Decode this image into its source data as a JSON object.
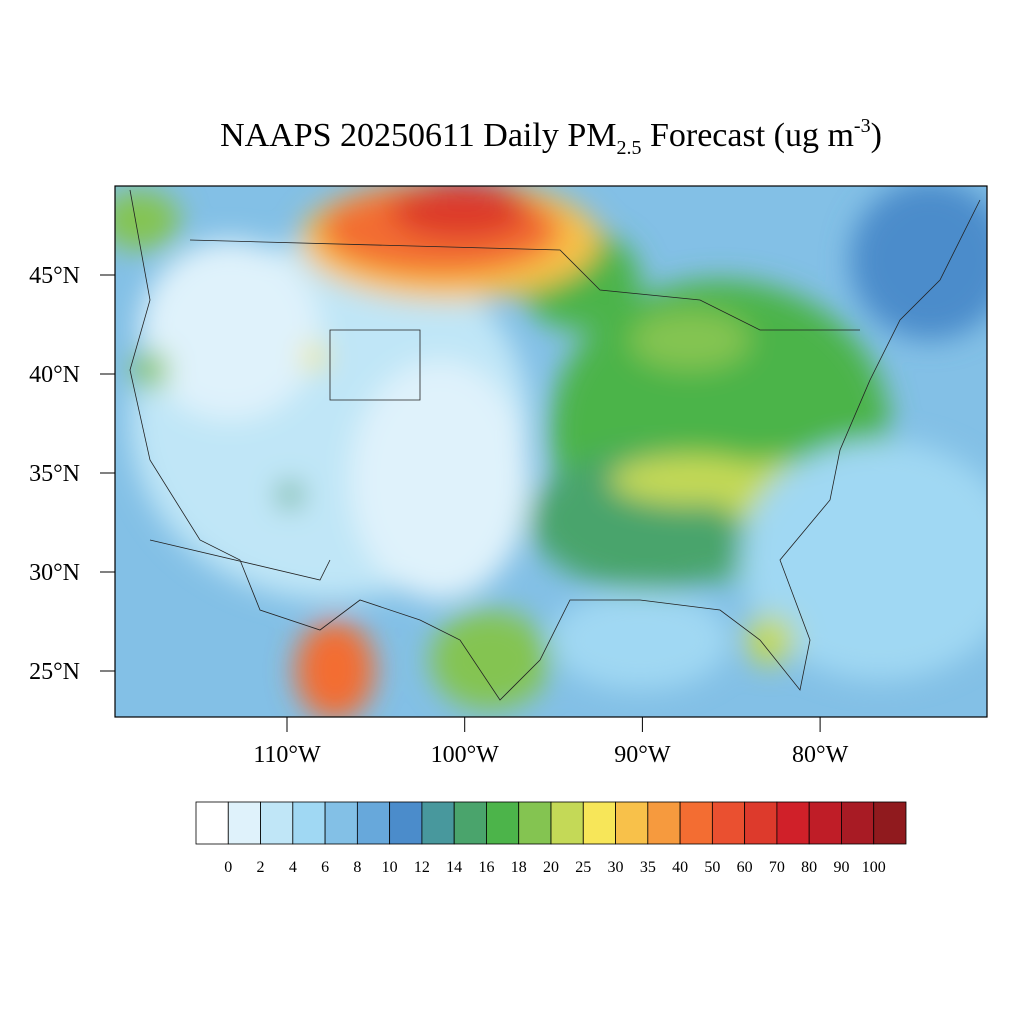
{
  "map": {
    "title": {
      "main": "NAAPS 20250611 Daily PM",
      "sub": "2.5",
      "middle": " Forecast (ug m",
      "sup": "-3",
      "end": ")"
    },
    "lat_ticks": [
      {
        "value": 45,
        "label": "45°N"
      },
      {
        "value": 40,
        "label": "40°N"
      },
      {
        "value": 35,
        "label": "35°N"
      },
      {
        "value": 30,
        "label": "30°N"
      },
      {
        "value": 25,
        "label": "25°N"
      }
    ],
    "lon_ticks": [
      {
        "value": -110,
        "label": "110°W"
      },
      {
        "value": -100,
        "label": "100°W"
      },
      {
        "value": -90,
        "label": "90°W"
      },
      {
        "value": -80,
        "label": "80°W"
      }
    ],
    "colorbar": {
      "levels": [
        0,
        2,
        4,
        6,
        8,
        10,
        12,
        14,
        16,
        18,
        20,
        25,
        30,
        35,
        40,
        50,
        60,
        70,
        80,
        90,
        100
      ],
      "colors": [
        "#ffffff",
        "#dff2fb",
        "#c0e6f7",
        "#a0d8f3",
        "#83c0e6",
        "#67a8db",
        "#4b8ccb",
        "#48989d",
        "#4aa46c",
        "#4cb44a",
        "#84c451",
        "#c4d957",
        "#f7e659",
        "#f8c14a",
        "#f69a3e",
        "#f36d32",
        "#ea5030",
        "#dd3a2c",
        "#d02029",
        "#bf1d27",
        "#a81b24",
        "#901a1e"
      ]
    }
  }
}
